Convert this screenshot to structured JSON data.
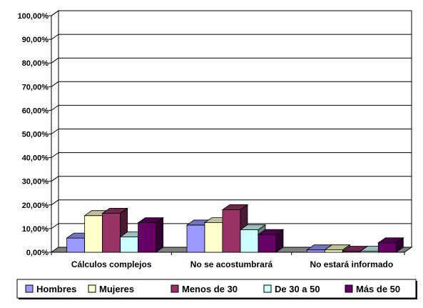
{
  "chart_data": {
    "type": "bar",
    "title": "",
    "xlabel": "",
    "ylabel": "",
    "ylim": [
      0,
      100
    ],
    "y_ticks": [
      "0,00%",
      "10,00%",
      "20,00%",
      "30,00%",
      "40,00%",
      "50,00%",
      "60,00%",
      "70,00%",
      "80,00%",
      "90,00%",
      "100,00%"
    ],
    "grid": true,
    "three_d": true,
    "legend_position": "bottom",
    "categories": [
      "Cálculos complejos",
      "No se acostumbrará",
      "No estará informado"
    ],
    "series": [
      {
        "name": "Hombres",
        "color": "#9999FF",
        "values": [
          6,
          11.5,
          1
        ]
      },
      {
        "name": "Mujeres",
        "color": "#FFFFCC",
        "values": [
          15.5,
          12.5,
          1
        ]
      },
      {
        "name": "Menos de 30",
        "color": "#993366",
        "values": [
          16.5,
          18,
          0
        ]
      },
      {
        "name": "De 30 a 50",
        "color": "#CCFFFF",
        "values": [
          6.5,
          9.5,
          0
        ]
      },
      {
        "name": "Más de 50",
        "color": "#660066",
        "values": [
          12.5,
          7.5,
          4
        ]
      }
    ],
    "floor_color": "#808080",
    "plot_background": "#ffffff"
  }
}
